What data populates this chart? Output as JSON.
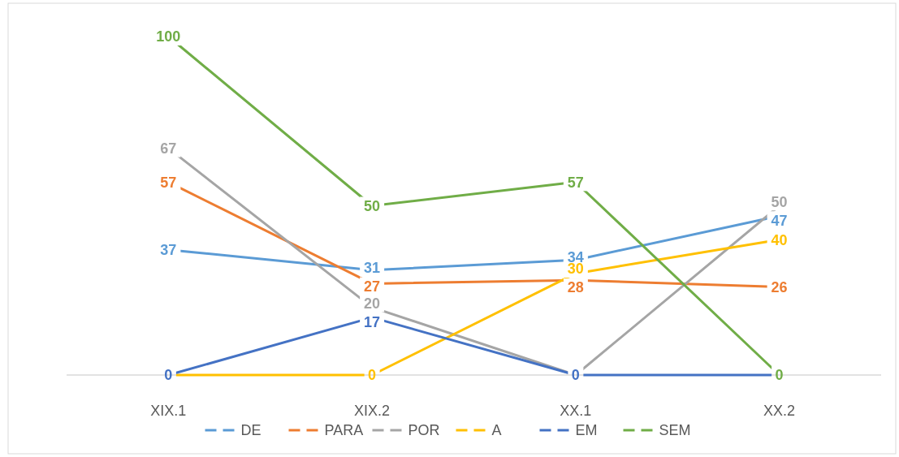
{
  "chart_data": {
    "type": "line",
    "categories": [
      "XIX.1",
      "XIX.2",
      "XX.1",
      "XX.2"
    ],
    "series": [
      {
        "name": "DE",
        "color": "#5b9bd5",
        "values": [
          37,
          31,
          34,
          47
        ]
      },
      {
        "name": "PARA",
        "color": "#ed7d31",
        "values": [
          57,
          27,
          28,
          26
        ]
      },
      {
        "name": "POR",
        "color": "#a5a5a5",
        "values": [
          67,
          20,
          0,
          50
        ],
        "value_labels": [
          "67",
          "20",
          null,
          "50"
        ]
      },
      {
        "name": "A",
        "color": "#ffc000",
        "values": [
          0,
          0,
          30,
          40
        ],
        "value_labels": [
          null,
          "0",
          "30",
          "40"
        ]
      },
      {
        "name": "EM",
        "color": "#4472c4",
        "values": [
          0,
          17,
          0,
          0
        ],
        "value_labels": [
          "0",
          "17",
          "0",
          null
        ]
      },
      {
        "name": "SEM",
        "color": "#70ad47",
        "values": [
          100,
          50,
          57,
          0
        ]
      }
    ],
    "data_labels": true,
    "legend": "bottom",
    "marker": "none",
    "line_style": "solid"
  }
}
